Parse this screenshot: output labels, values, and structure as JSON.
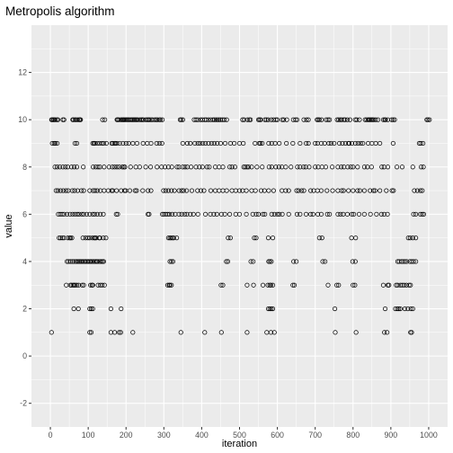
{
  "chart_data": {
    "type": "scatter",
    "title": "Metropolis algorithm",
    "xlabel": "iteration",
    "ylabel": "value",
    "xlim": [
      -50,
      1050
    ],
    "ylim": [
      -3,
      14
    ],
    "xticks": [
      0,
      100,
      200,
      300,
      400,
      500,
      600,
      700,
      800,
      900,
      1000
    ],
    "xtick_labels": [
      "0",
      "100",
      "200",
      "300",
      "400",
      "500",
      "600",
      "700",
      "800",
      "900",
      "1000"
    ],
    "yticks": [
      -2,
      0,
      2,
      4,
      6,
      8,
      10,
      12
    ],
    "ytick_labels": [
      "-2",
      "0",
      "2",
      "4",
      "6",
      "8",
      "10",
      "12"
    ],
    "grid": true,
    "colors": {
      "panel": "#ebebeb",
      "grid": "#ffffff",
      "point": "#000000"
    },
    "marker": "open-circle",
    "series": [
      {
        "x": [
          3,
          5,
          8,
          10,
          13,
          17,
          20,
          33,
          36,
          59,
          61,
          65,
          68,
          72,
          76,
          78,
          80,
          138,
          144,
          176,
          178,
          181,
          186,
          189,
          192,
          194,
          197,
          200,
          203,
          206,
          209,
          213,
          216,
          219,
          222,
          225,
          228,
          231,
          236,
          240,
          243,
          246,
          252,
          256,
          259,
          262,
          266,
          270,
          276,
          280,
          283,
          288,
          291,
          296,
          343,
          346,
          350,
          380,
          385,
          390,
          397,
          402,
          408,
          412,
          418,
          424,
          430,
          434,
          438,
          442,
          446,
          450,
          455,
          460,
          466,
          508,
          512,
          521,
          526,
          529,
          550,
          553,
          556,
          567,
          571,
          576,
          584,
          590,
          596,
          600,
          613,
          617,
          625,
          642,
          648,
          652,
          670,
          677,
          682,
          705,
          708,
          711,
          717,
          729,
          734,
          738,
          758,
          762,
          766,
          770,
          776,
          779,
          785,
          792,
          806,
          810,
          817,
          832,
          836,
          840,
          843,
          846,
          849,
          852,
          855,
          860,
          866,
          880,
          884,
          886,
          892,
          902,
          906,
          910,
          995,
          998,
          1002,
          5,
          10,
          13,
          18,
          65,
          70,
          112,
          115,
          118,
          124,
          130,
          136,
          141,
          148,
          162,
          165,
          170,
          172,
          176,
          183,
          192,
          200,
          207,
          218,
          229,
          245,
          256,
          266,
          281,
          288,
          295,
          350,
          362,
          370,
          382,
          390,
          396,
          403,
          410,
          418,
          426,
          433,
          441,
          450,
          462,
          476,
          486,
          500,
          510,
          541,
          552,
          555,
          560,
          577,
          585,
          594,
          605,
          624,
          641,
          660,
          676,
          682,
          700,
          706,
          716,
          725,
          736,
          742,
          750,
          764,
          772,
          780,
          788,
          790,
          797,
          806,
          813,
          820,
          826,
          840,
          850,
          860,
          871,
          906,
          975,
          979,
          985,
          12,
          18,
          25,
          33,
          40,
          46,
          56,
          63,
          70,
          87,
          113,
          120,
          126,
          131,
          142,
          155,
          164,
          170,
          176,
          182,
          190,
          194,
          197,
          212,
          226,
          236,
          252,
          265,
          282,
          294,
          303,
          312,
          321,
          335,
          340,
          350,
          356,
          362,
          372,
          385,
          394,
          402,
          414,
          420,
          436,
          446,
          456,
          474,
          480,
          488,
          511,
          515,
          520,
          524,
          532,
          546,
          560,
          578,
          585,
          596,
          604,
          612,
          622,
          636,
          653,
          660,
          669,
          675,
          684,
          700,
          708,
          718,
          728,
          745,
          760,
          769,
          776,
          786,
          794,
          800,
          812,
          830,
          838,
          849,
          876,
          882,
          892,
          916,
          930,
          958,
          980,
          986,
          15,
          20,
          27,
          34,
          41,
          47,
          58,
          64,
          72,
          82,
          88,
          104,
          113,
          118,
          124,
          132,
          142,
          153,
          162,
          165,
          175,
          187,
          196,
          199,
          210,
          224,
          228,
          244,
          258,
          266,
          299,
          305,
          312,
          320,
          328,
          340,
          347,
          352,
          360,
          374,
          389,
          398,
          406,
          424,
          436,
          446,
          456,
          466,
          480,
          490,
          500,
          508,
          518,
          532,
          542,
          557,
          566,
          577,
          590,
          612,
          622,
          630,
          651,
          656,
          664,
          670,
          688,
          696,
          706,
          716,
          731,
          746,
          760,
          770,
          775,
          788,
          800,
          812,
          818,
          830,
          845,
          854,
          858,
          871,
          888,
          903,
          907,
          962,
          970,
          978,
          983,
          21,
          26,
          31,
          36,
          44,
          52,
          59,
          65,
          71,
          76,
          83,
          88,
          96,
          104,
          112,
          117,
          124,
          132,
          140,
          174,
          178,
          258,
          261,
          296,
          300,
          305,
          310,
          315,
          322,
          330,
          340,
          347,
          355,
          361,
          370,
          378,
          390,
          410,
          423,
          432,
          440,
          452,
          461,
          474,
          490,
          500,
          518,
          535,
          544,
          550,
          562,
          567,
          585,
          592,
          600,
          605,
          613,
          630,
          652,
          660,
          676,
          688,
          694,
          707,
          716,
          732,
          738,
          760,
          767,
          774,
          785,
          797,
          802,
          816,
          830,
          846,
          862,
          875,
          882,
          891,
          960,
          966,
          978,
          983,
          987,
          23,
          27,
          32,
          36,
          46,
          51,
          53,
          57,
          86,
          93,
          99,
          104,
          111,
          116,
          118,
          121,
          129,
          131,
          140,
          147,
          312,
          316,
          319,
          323,
          326,
          334,
          470,
          476,
          539,
          544,
          576,
          588,
          711,
          718,
          796,
          807,
          946,
          951,
          958,
          966,
          44,
          48,
          53,
          58,
          62,
          67,
          71,
          74,
          77,
          80,
          83,
          87,
          91,
          94,
          98,
          101,
          105,
          108,
          112,
          116,
          120,
          123,
          126,
          131,
          135,
          138,
          141,
          316,
          320,
          324,
          465,
          469,
          530,
          536,
          577,
          580,
          584,
          643,
          650,
          720,
          726,
          799,
          806,
          918,
          922,
          928,
          932,
          937,
          942,
          950,
          955,
          960,
          966,
          42,
          53,
          56,
          60,
          63,
          66,
          70,
          75,
          84,
          88,
          106,
          110,
          112,
          126,
          132,
          137,
          143,
          310,
          314,
          316,
          320,
          451,
          456,
          520,
          537,
          562,
          575,
          580,
          583,
          588,
          641,
          645,
          734,
          757,
          762,
          800,
          805,
          880,
          892,
          895,
          914,
          918,
          925,
          930,
          935,
          941,
          948,
          952,
          62,
          74,
          104,
          108,
          112,
          160,
          187,
          576,
          580,
          584,
          588,
          752,
          885,
          912,
          917,
          921,
          925,
          937,
          945,
          953,
          958,
          3,
          104,
          108,
          160,
          170,
          182,
          186,
          218,
          345,
          408,
          452,
          520,
          572,
          583,
          592,
          753,
          808,
          883,
          890,
          952,
          955
        ],
        "y": [
          10,
          10,
          10,
          10,
          10,
          10,
          10,
          10,
          10,
          10,
          10,
          10,
          10,
          10,
          10,
          10,
          10,
          10,
          10,
          10,
          10,
          10,
          10,
          10,
          10,
          10,
          10,
          10,
          10,
          10,
          10,
          10,
          10,
          10,
          10,
          10,
          10,
          10,
          10,
          10,
          10,
          10,
          10,
          10,
          10,
          10,
          10,
          10,
          10,
          10,
          10,
          10,
          10,
          10,
          10,
          10,
          10,
          10,
          10,
          10,
          10,
          10,
          10,
          10,
          10,
          10,
          10,
          10,
          10,
          10,
          10,
          10,
          10,
          10,
          10,
          10,
          10,
          10,
          10,
          10,
          10,
          10,
          10,
          10,
          10,
          10,
          10,
          10,
          10,
          10,
          10,
          10,
          10,
          10,
          10,
          10,
          10,
          10,
          10,
          10,
          10,
          10,
          10,
          10,
          10,
          10,
          10,
          10,
          10,
          10,
          10,
          10,
          10,
          10,
          10,
          10,
          10,
          10,
          10,
          10,
          10,
          10,
          10,
          10,
          10,
          10,
          10,
          10,
          10,
          10,
          10,
          10,
          10,
          10,
          10,
          10,
          10,
          9,
          9,
          9,
          9,
          9,
          9,
          9,
          9,
          9,
          9,
          9,
          9,
          9,
          9,
          9,
          9,
          9,
          9,
          9,
          9,
          9,
          9,
          9,
          9,
          9,
          9,
          9,
          9,
          9,
          9,
          9,
          9,
          9,
          9,
          9,
          9,
          9,
          9,
          9,
          9,
          9,
          9,
          9,
          9,
          9,
          9,
          9,
          9,
          9,
          9,
          9,
          9,
          9,
          9,
          9,
          9,
          9,
          9,
          9,
          9,
          9,
          9,
          9,
          9,
          9,
          9,
          9,
          9,
          9,
          9,
          9,
          9,
          9,
          9,
          9,
          9,
          9,
          9,
          9,
          9,
          9,
          9,
          9,
          9,
          9,
          9,
          9,
          8,
          8,
          8,
          8,
          8,
          8,
          8,
          8,
          8,
          8,
          8,
          8,
          8,
          8,
          8,
          8,
          8,
          8,
          8,
          8,
          8,
          8,
          8,
          8,
          8,
          8,
          8,
          8,
          8,
          8,
          8,
          8,
          8,
          8,
          8,
          8,
          8,
          8,
          8,
          8,
          8,
          8,
          8,
          8,
          8,
          8,
          8,
          8,
          8,
          8,
          8,
          8,
          8,
          8,
          8,
          8,
          8,
          8,
          8,
          8,
          8,
          8,
          8,
          8,
          8,
          8,
          8,
          8,
          8,
          8,
          8,
          8,
          8,
          8,
          8,
          8,
          8,
          8,
          8,
          8,
          8,
          8,
          8,
          8,
          8,
          8,
          8,
          8,
          8,
          8,
          8,
          8,
          7,
          7,
          7,
          7,
          7,
          7,
          7,
          7,
          7,
          7,
          7,
          7,
          7,
          7,
          7,
          7,
          7,
          7,
          7,
          7,
          7,
          7,
          7,
          7,
          7,
          7,
          7,
          7,
          7,
          7,
          7,
          7,
          7,
          7,
          7,
          7,
          7,
          7,
          7,
          7,
          7,
          7,
          7,
          7,
          7,
          7,
          7,
          7,
          7,
          7,
          7,
          7,
          7,
          7,
          7,
          7,
          7,
          7,
          7,
          7,
          7,
          7,
          7,
          7,
          7,
          7,
          7,
          7,
          7,
          7,
          7,
          7,
          7,
          7,
          7,
          7,
          7,
          7,
          7,
          7,
          7,
          7,
          7,
          7,
          7,
          7,
          7,
          7,
          7,
          7,
          7,
          6,
          6,
          6,
          6,
          6,
          6,
          6,
          6,
          6,
          6,
          6,
          6,
          6,
          6,
          6,
          6,
          6,
          6,
          6,
          6,
          6,
          6,
          6,
          6,
          6,
          6,
          6,
          6,
          6,
          6,
          6,
          6,
          6,
          6,
          6,
          6,
          6,
          6,
          6,
          6,
          6,
          6,
          6,
          6,
          6,
          6,
          6,
          6,
          6,
          6,
          6,
          6,
          6,
          6,
          6,
          6,
          6,
          6,
          6,
          6,
          6,
          6,
          6,
          6,
          6,
          6,
          6,
          6,
          6,
          6,
          6,
          6,
          6,
          6,
          6,
          6,
          6,
          6,
          6,
          6,
          6,
          6,
          6,
          6,
          6,
          5,
          5,
          5,
          5,
          5,
          5,
          5,
          5,
          5,
          5,
          5,
          5,
          5,
          5,
          5,
          5,
          5,
          5,
          5,
          5,
          5,
          5,
          5,
          5,
          5,
          5,
          5,
          5,
          5,
          5,
          5,
          5,
          5,
          5,
          5,
          5,
          5,
          5,
          5,
          5,
          4,
          4,
          4,
          4,
          4,
          4,
          4,
          4,
          4,
          4,
          4,
          4,
          4,
          4,
          4,
          4,
          4,
          4,
          4,
          4,
          4,
          4,
          4,
          4,
          4,
          4,
          4,
          4,
          4,
          4,
          4,
          4,
          4,
          4,
          4,
          4,
          4,
          4,
          4,
          4,
          4,
          4,
          4,
          4,
          4,
          4,
          4,
          4,
          4,
          4,
          4,
          4,
          4,
          3,
          3,
          3,
          3,
          3,
          3,
          3,
          3,
          3,
          3,
          3,
          3,
          3,
          3,
          3,
          3,
          3,
          3,
          3,
          3,
          3,
          3,
          3,
          3,
          3,
          3,
          3,
          3,
          3,
          3,
          3,
          3,
          3,
          3,
          3,
          3,
          3,
          3,
          3,
          3,
          3,
          3,
          3,
          3,
          3,
          3,
          3,
          3,
          2,
          2,
          2,
          2,
          2,
          2,
          2,
          2,
          2,
          2,
          2,
          2,
          2,
          2,
          2,
          2,
          2,
          2,
          2,
          2,
          2,
          1,
          1,
          1,
          1,
          1,
          1,
          1,
          1,
          1,
          1,
          1,
          1,
          1,
          1,
          1,
          1,
          1,
          1,
          1,
          1,
          1
        ]
      }
    ]
  }
}
